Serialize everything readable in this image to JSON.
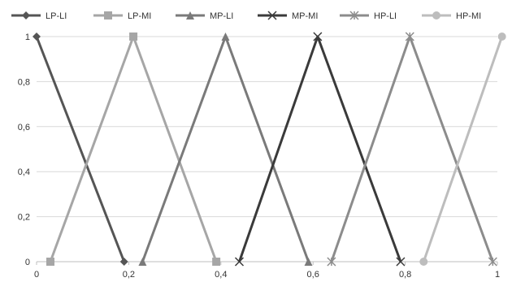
{
  "chart_data": {
    "type": "line",
    "title": "",
    "xlabel": "",
    "ylabel": "",
    "xlim": [
      0,
      1
    ],
    "ylim": [
      0,
      1
    ],
    "grid": true,
    "legend_position": "top",
    "x_ticks": [
      0,
      0.2,
      0.4,
      0.6,
      0.8,
      1
    ],
    "x_tick_labels": [
      "0",
      "0,2",
      "0,4",
      "0,6",
      "0,8",
      "1"
    ],
    "y_ticks": [
      0,
      0.2,
      0.4,
      0.6,
      0.8,
      1
    ],
    "y_tick_labels": [
      "0",
      "0,2",
      "0,4",
      "0,6",
      "0,8",
      "1"
    ],
    "series": [
      {
        "name": "LP-LI",
        "color": "#555555",
        "marker": "diamond",
        "x": [
          0,
          0.19
        ],
        "y": [
          1,
          0
        ]
      },
      {
        "name": "LP-MI",
        "color": "#a6a6a6",
        "marker": "square",
        "x": [
          0.03,
          0.21,
          0.39
        ],
        "y": [
          0,
          1,
          0
        ]
      },
      {
        "name": "MP-LI",
        "color": "#7a7a7a",
        "marker": "triangle",
        "x": [
          0.23,
          0.41,
          0.59
        ],
        "y": [
          0,
          1,
          0
        ]
      },
      {
        "name": "MP-MI",
        "color": "#3a3a3a",
        "marker": "x",
        "x": [
          0.44,
          0.61,
          0.79
        ],
        "y": [
          0,
          1,
          0
        ]
      },
      {
        "name": "HP-LI",
        "color": "#8c8c8c",
        "marker": "star",
        "x": [
          0.64,
          0.81,
          0.99
        ],
        "y": [
          0,
          1,
          0
        ]
      },
      {
        "name": "HP-MI",
        "color": "#bdbdbd",
        "marker": "circle",
        "x": [
          0.84,
          1.01
        ],
        "y": [
          0,
          1
        ]
      }
    ]
  }
}
